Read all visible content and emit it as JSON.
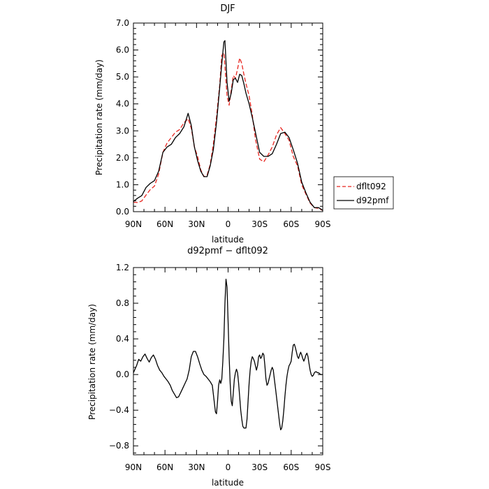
{
  "chart_data": [
    {
      "type": "line",
      "title": "DJF",
      "xlabel": "latitude",
      "ylabel": "Precipitation rate (mm/day)",
      "xlim": [
        -90,
        90
      ],
      "ylim": [
        0,
        7
      ],
      "x_ticks": [
        -90,
        -60,
        -30,
        0,
        30,
        60,
        90
      ],
      "x_tick_labels": [
        "90N",
        "60N",
        "30N",
        "0",
        "30S",
        "60S",
        "90S"
      ],
      "y_ticks": [
        0,
        1,
        2,
        3,
        4,
        5,
        6,
        7
      ],
      "y_tick_labels": [
        "0.0",
        "1.0",
        "2.0",
        "3.0",
        "4.0",
        "5.0",
        "6.0",
        "7.0"
      ],
      "grid": false,
      "legend_position": "outside-right",
      "series": [
        {
          "name": "dflt092",
          "color": "#e8251f",
          "dash": "dashed",
          "x": [
            -90,
            -86,
            -82,
            -78,
            -74,
            -70,
            -66,
            -62,
            -58,
            -54,
            -50,
            -46,
            -42,
            -38,
            -35,
            -32,
            -29,
            -26,
            -23,
            -20,
            -17,
            -14,
            -11,
            -8,
            -6,
            -4,
            -3,
            -1,
            1,
            3,
            5,
            7,
            9,
            11,
            13,
            15,
            17,
            20,
            23,
            26,
            30,
            34,
            38,
            42,
            46,
            50,
            54,
            58,
            62,
            66,
            70,
            74,
            78,
            82,
            86,
            90
          ],
          "y": [
            0.35,
            0.34,
            0.4,
            0.62,
            0.82,
            0.95,
            1.4,
            2.2,
            2.55,
            2.75,
            2.95,
            3.05,
            3.3,
            3.45,
            3.1,
            2.4,
            2.05,
            1.55,
            1.3,
            1.35,
            1.75,
            2.5,
            3.5,
            4.7,
            5.8,
            5.9,
            5.4,
            4.3,
            3.95,
            4.5,
            5.05,
            4.95,
            5.3,
            5.7,
            5.5,
            5.1,
            4.75,
            4.3,
            3.6,
            2.7,
            1.95,
            1.85,
            2.1,
            2.4,
            2.85,
            3.12,
            2.9,
            2.65,
            2.05,
            1.7,
            1.0,
            0.65,
            0.32,
            0.15,
            0.12,
            0.05
          ]
        },
        {
          "name": "d92pmf",
          "color": "#000000",
          "dash": "solid",
          "x": [
            -90,
            -86,
            -82,
            -78,
            -74,
            -70,
            -66,
            -62,
            -58,
            -54,
            -50,
            -46,
            -42,
            -38,
            -35,
            -32,
            -29,
            -26,
            -23,
            -20,
            -17,
            -14,
            -11,
            -8,
            -6,
            -4,
            -3,
            -1,
            1,
            3,
            5,
            7,
            9,
            11,
            13,
            15,
            17,
            20,
            23,
            26,
            30,
            34,
            38,
            42,
            46,
            50,
            54,
            58,
            62,
            66,
            70,
            74,
            78,
            82,
            86,
            90
          ],
          "y": [
            0.38,
            0.5,
            0.6,
            0.9,
            1.05,
            1.15,
            1.5,
            2.2,
            2.4,
            2.5,
            2.75,
            2.9,
            3.15,
            3.65,
            3.2,
            2.4,
            1.9,
            1.5,
            1.3,
            1.3,
            1.7,
            2.3,
            3.3,
            4.6,
            5.5,
            6.3,
            6.35,
            4.8,
            4.1,
            4.4,
            4.9,
            4.95,
            4.8,
            5.1,
            5.05,
            4.75,
            4.4,
            4.0,
            3.5,
            2.95,
            2.2,
            2.05,
            2.05,
            2.15,
            2.5,
            2.9,
            2.95,
            2.75,
            2.3,
            1.8,
            1.1,
            0.7,
            0.35,
            0.15,
            0.15,
            0.05
          ]
        }
      ]
    },
    {
      "type": "line",
      "title": "d92pmf − dflt092",
      "xlabel": "latitude",
      "ylabel": "Precipitation rate (mm/day)",
      "xlim": [
        -90,
        90
      ],
      "ylim": [
        -0.9,
        1.2
      ],
      "x_ticks": [
        -90,
        -60,
        -30,
        0,
        30,
        60,
        90
      ],
      "x_tick_labels": [
        "90N",
        "60N",
        "30N",
        "0",
        "30S",
        "60S",
        "90S"
      ],
      "y_ticks": [
        -0.8,
        -0.4,
        0.0,
        0.4,
        0.8,
        1.2
      ],
      "y_tick_labels": [
        "−0.8",
        "−0.4",
        "0.0",
        "0.4",
        "0.8",
        "1.2"
      ],
      "grid": false,
      "series": [
        {
          "color": "#000000",
          "dash": "solid",
          "x": [
            -90,
            -87,
            -85,
            -83,
            -81,
            -79,
            -77,
            -75,
            -73,
            -71,
            -69,
            -67,
            -65,
            -63,
            -61,
            -59,
            -57,
            -55,
            -53,
            -51,
            -49,
            -47,
            -45,
            -43,
            -41,
            -39,
            -37,
            -35,
            -33,
            -31,
            -29,
            -27,
            -25,
            -23,
            -21,
            -19,
            -17,
            -15,
            -14,
            -13,
            -12,
            -11,
            -10,
            -9,
            -8,
            -7,
            -6,
            -5,
            -4,
            -3,
            -2,
            -1,
            0,
            1,
            2,
            3,
            4,
            5,
            6,
            7,
            8,
            9,
            10,
            11,
            12,
            13,
            14,
            15,
            16,
            17,
            18,
            19,
            20,
            21,
            22,
            23,
            24,
            25,
            26,
            27,
            28,
            29,
            30,
            31,
            32,
            33,
            34,
            35,
            36,
            37,
            38,
            39,
            40,
            41,
            42,
            43,
            44,
            45,
            46,
            47,
            48,
            49,
            50,
            51,
            52,
            53,
            54,
            55,
            56,
            57,
            58,
            59,
            60,
            61,
            62,
            63,
            64,
            65,
            66,
            67,
            68,
            69,
            70,
            71,
            72,
            73,
            74,
            75,
            76,
            77,
            78,
            79,
            80,
            81,
            82,
            83,
            84,
            85,
            86,
            87,
            88,
            89,
            90
          ],
          "y": [
            0.02,
            0.1,
            0.17,
            0.15,
            0.2,
            0.23,
            0.18,
            0.14,
            0.19,
            0.22,
            0.17,
            0.1,
            0.05,
            0.02,
            -0.02,
            -0.05,
            -0.08,
            -0.12,
            -0.18,
            -0.22,
            -0.26,
            -0.25,
            -0.2,
            -0.15,
            -0.1,
            -0.05,
            0.05,
            0.2,
            0.26,
            0.26,
            0.2,
            0.12,
            0.05,
            0.0,
            -0.02,
            -0.05,
            -0.08,
            -0.12,
            -0.22,
            -0.32,
            -0.42,
            -0.44,
            -0.3,
            -0.12,
            -0.06,
            -0.1,
            -0.05,
            0.15,
            0.4,
            0.8,
            1.07,
            0.98,
            0.6,
            0.2,
            -0.1,
            -0.3,
            -0.35,
            -0.2,
            -0.05,
            0.02,
            0.06,
            0.02,
            -0.1,
            -0.25,
            -0.4,
            -0.5,
            -0.58,
            -0.6,
            -0.6,
            -0.6,
            -0.5,
            -0.3,
            -0.1,
            0.05,
            0.15,
            0.2,
            0.18,
            0.15,
            0.1,
            0.05,
            0.1,
            0.2,
            0.22,
            0.18,
            0.2,
            0.24,
            0.22,
            0.1,
            -0.05,
            -0.12,
            -0.1,
            -0.05,
            0.0,
            0.05,
            0.08,
            0.05,
            -0.05,
            -0.15,
            -0.25,
            -0.35,
            -0.45,
            -0.55,
            -0.62,
            -0.6,
            -0.52,
            -0.4,
            -0.25,
            -0.12,
            -0.02,
            0.05,
            0.1,
            0.12,
            0.15,
            0.25,
            0.33,
            0.34,
            0.3,
            0.25,
            0.2,
            0.18,
            0.22,
            0.25,
            0.22,
            0.18,
            0.15,
            0.18,
            0.22,
            0.24,
            0.2,
            0.12,
            0.05,
            0.0,
            -0.02,
            -0.01,
            0.02,
            0.03,
            0.03,
            0.02,
            0.02,
            0.01,
            0.0,
            0.0,
            0.0
          ]
        }
      ]
    }
  ]
}
